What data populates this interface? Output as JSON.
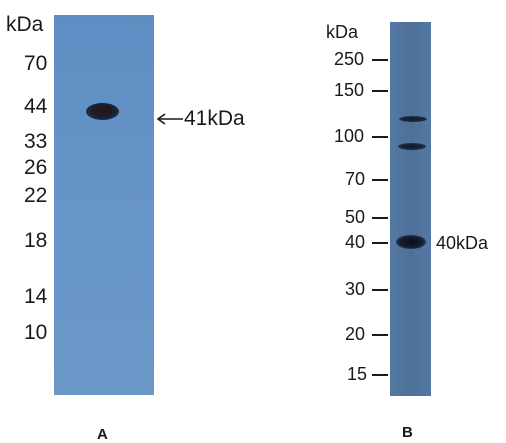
{
  "panel_a": {
    "unit_label": "kDa",
    "markers": [
      "70",
      "44",
      "33",
      "26",
      "22",
      "18",
      "14",
      "10"
    ],
    "band_annotation": "41kDa",
    "panel_letter": "A"
  },
  "panel_b": {
    "unit_label": "kDa",
    "markers": [
      "250",
      "150",
      "100",
      "70",
      "50",
      "40",
      "30",
      "20",
      "15"
    ],
    "band_annotation": "40kDa",
    "panel_letter": "B"
  },
  "colors": {
    "gel_a": "#6594c7",
    "gel_b": "#4e7098",
    "band": "#0f1a2a"
  }
}
